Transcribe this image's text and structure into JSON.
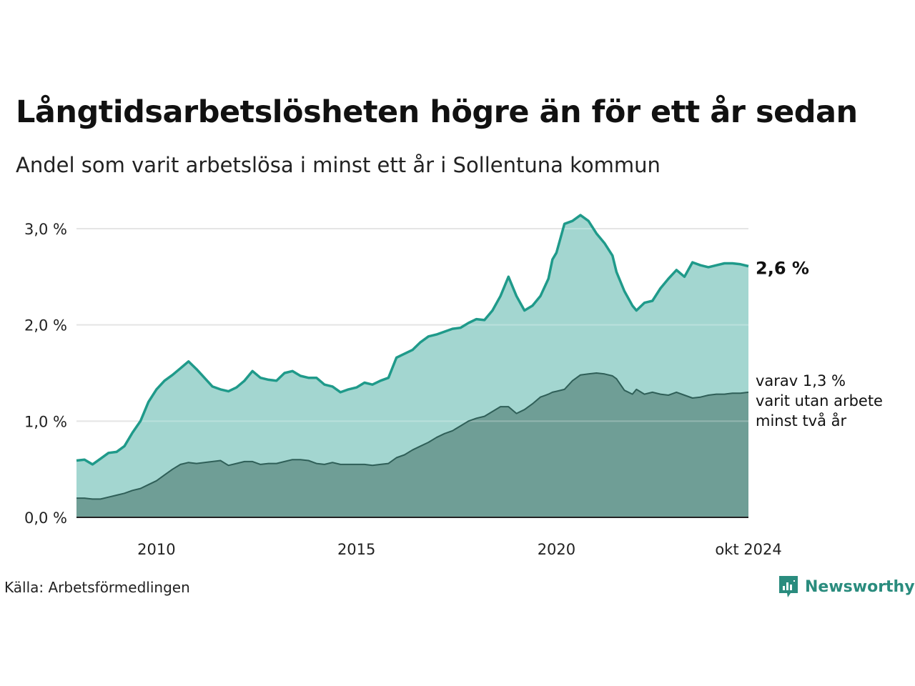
{
  "title": "Långtidsarbetslösheten högre än för ett år sedan",
  "subtitle": "Andel som varit arbetslösa i minst ett år i Sollentuna kommun",
  "source": "Källa: Arbetsförmedlingen",
  "brand": {
    "name": "Newsworthy",
    "icon": "newsworthy-logo-icon",
    "color": "#2a8c7e"
  },
  "end_label": "2,6 %",
  "sub_label_lines": [
    "varav 1,3 %",
    "varit utan arbete",
    "minst två år"
  ],
  "colors": {
    "series1_line": "#1f9a8a",
    "series1_fill": "#a3d6d0",
    "series2_line": "#2f5f58",
    "series2_fill": "#6f9e96",
    "grid": "#dddddd"
  },
  "chart_data": {
    "type": "area",
    "title": "Långtidsarbetslösheten högre än för ett år sedan",
    "subtitle": "Andel som varit arbetslösa i minst ett år i Sollentuna kommun",
    "xlabel": "",
    "ylabel": "",
    "xlim": [
      2008.0,
      2024.8
    ],
    "ylim": [
      0,
      3.0
    ],
    "yticks": [
      0,
      1,
      2,
      3
    ],
    "ytick_labels": [
      "0,0 %",
      "1,0 %",
      "2,0 %",
      "3,0 %"
    ],
    "xticks": [
      2010,
      2015,
      2020,
      2024.8
    ],
    "xtick_labels": [
      "2010",
      "2015",
      "2020",
      "okt 2024"
    ],
    "grid": true,
    "series": [
      {
        "name": "Minst ett år",
        "x": [
          2008.0,
          2008.2,
          2008.4,
          2008.6,
          2008.8,
          2009.0,
          2009.2,
          2009.4,
          2009.6,
          2009.8,
          2010.0,
          2010.2,
          2010.4,
          2010.6,
          2010.8,
          2011.0,
          2011.2,
          2011.4,
          2011.6,
          2011.8,
          2012.0,
          2012.2,
          2012.4,
          2012.6,
          2012.8,
          2013.0,
          2013.2,
          2013.4,
          2013.6,
          2013.8,
          2014.0,
          2014.2,
          2014.4,
          2014.6,
          2014.8,
          2015.0,
          2015.2,
          2015.4,
          2015.6,
          2015.8,
          2016.0,
          2016.2,
          2016.4,
          2016.6,
          2016.8,
          2017.0,
          2017.2,
          2017.4,
          2017.6,
          2017.8,
          2018.0,
          2018.2,
          2018.4,
          2018.6,
          2018.8,
          2019.0,
          2019.2,
          2019.4,
          2019.6,
          2019.8,
          2019.9,
          2020.0,
          2020.2,
          2020.4,
          2020.6,
          2020.8,
          2021.0,
          2021.2,
          2021.4,
          2021.5,
          2021.7,
          2021.9,
          2022.0,
          2022.2,
          2022.4,
          2022.6,
          2022.8,
          2023.0,
          2023.2,
          2023.4,
          2023.6,
          2023.8,
          2024.0,
          2024.2,
          2024.4,
          2024.6,
          2024.8
        ],
        "values": [
          0.59,
          0.6,
          0.55,
          0.61,
          0.67,
          0.68,
          0.74,
          0.88,
          1.0,
          1.2,
          1.33,
          1.42,
          1.48,
          1.55,
          1.62,
          1.54,
          1.45,
          1.36,
          1.33,
          1.31,
          1.35,
          1.42,
          1.52,
          1.45,
          1.43,
          1.42,
          1.5,
          1.52,
          1.47,
          1.45,
          1.45,
          1.38,
          1.36,
          1.3,
          1.33,
          1.35,
          1.4,
          1.38,
          1.42,
          1.45,
          1.66,
          1.7,
          1.74,
          1.82,
          1.88,
          1.9,
          1.93,
          1.96,
          1.97,
          2.02,
          2.06,
          2.05,
          2.15,
          2.3,
          2.5,
          2.3,
          2.15,
          2.2,
          2.3,
          2.48,
          2.68,
          2.75,
          3.05,
          3.08,
          3.14,
          3.08,
          2.95,
          2.85,
          2.72,
          2.55,
          2.35,
          2.2,
          2.15,
          2.23,
          2.25,
          2.38,
          2.48,
          2.57,
          2.5,
          2.65,
          2.62,
          2.6,
          2.62,
          2.64,
          2.64,
          2.63,
          2.61
        ]
      },
      {
        "name": "Minst två år",
        "x": [
          2008.0,
          2008.2,
          2008.4,
          2008.6,
          2008.8,
          2009.0,
          2009.2,
          2009.4,
          2009.6,
          2009.8,
          2010.0,
          2010.2,
          2010.4,
          2010.6,
          2010.8,
          2011.0,
          2011.2,
          2011.4,
          2011.6,
          2011.8,
          2012.0,
          2012.2,
          2012.4,
          2012.6,
          2012.8,
          2013.0,
          2013.2,
          2013.4,
          2013.6,
          2013.8,
          2014.0,
          2014.2,
          2014.4,
          2014.6,
          2014.8,
          2015.0,
          2015.2,
          2015.4,
          2015.6,
          2015.8,
          2016.0,
          2016.2,
          2016.4,
          2016.6,
          2016.8,
          2017.0,
          2017.2,
          2017.4,
          2017.6,
          2017.8,
          2018.0,
          2018.2,
          2018.4,
          2018.6,
          2018.8,
          2019.0,
          2019.2,
          2019.4,
          2019.6,
          2019.8,
          2019.9,
          2020.0,
          2020.2,
          2020.4,
          2020.6,
          2020.8,
          2021.0,
          2021.2,
          2021.4,
          2021.5,
          2021.7,
          2021.9,
          2022.0,
          2022.2,
          2022.4,
          2022.6,
          2022.8,
          2023.0,
          2023.2,
          2023.4,
          2023.6,
          2023.8,
          2024.0,
          2024.2,
          2024.4,
          2024.6,
          2024.8
        ],
        "values": [
          0.2,
          0.2,
          0.19,
          0.19,
          0.21,
          0.23,
          0.25,
          0.28,
          0.3,
          0.34,
          0.38,
          0.44,
          0.5,
          0.55,
          0.57,
          0.56,
          0.57,
          0.58,
          0.59,
          0.54,
          0.56,
          0.58,
          0.58,
          0.55,
          0.56,
          0.56,
          0.58,
          0.6,
          0.6,
          0.59,
          0.56,
          0.55,
          0.57,
          0.55,
          0.55,
          0.55,
          0.55,
          0.54,
          0.55,
          0.56,
          0.62,
          0.65,
          0.7,
          0.74,
          0.78,
          0.83,
          0.87,
          0.9,
          0.95,
          1.0,
          1.03,
          1.05,
          1.1,
          1.15,
          1.15,
          1.08,
          1.12,
          1.18,
          1.25,
          1.28,
          1.3,
          1.31,
          1.33,
          1.42,
          1.48,
          1.49,
          1.5,
          1.49,
          1.47,
          1.44,
          1.32,
          1.28,
          1.33,
          1.28,
          1.3,
          1.28,
          1.27,
          1.3,
          1.27,
          1.24,
          1.25,
          1.27,
          1.28,
          1.28,
          1.29,
          1.29,
          1.3
        ]
      }
    ]
  }
}
